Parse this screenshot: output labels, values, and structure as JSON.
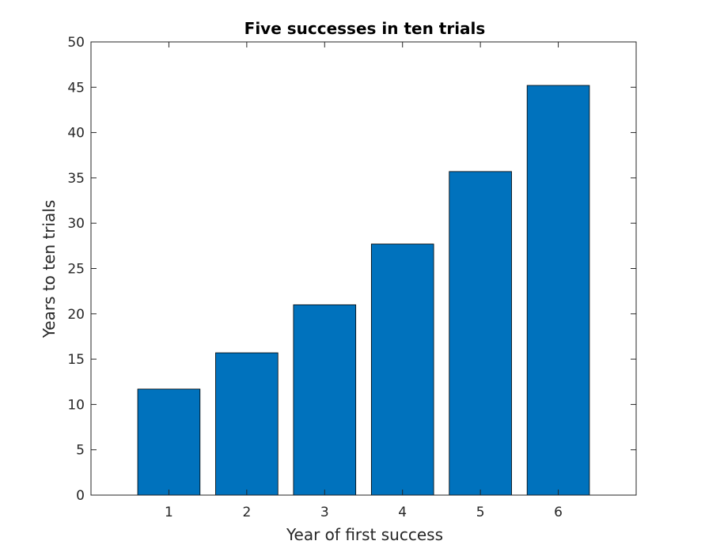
{
  "chart_data": {
    "type": "bar",
    "title": "Five successes in ten trials",
    "xlabel": "Year of first success",
    "ylabel": "Years to ten trials",
    "categories": [
      "1",
      "2",
      "3",
      "4",
      "5",
      "6"
    ],
    "values": [
      11.7,
      15.7,
      21.0,
      27.7,
      35.7,
      45.2
    ],
    "xlim": [
      0,
      7
    ],
    "ylim": [
      0,
      50
    ],
    "yticks": [
      0,
      5,
      10,
      15,
      20,
      25,
      30,
      35,
      40,
      45,
      50
    ],
    "grid": false,
    "legend": "none",
    "bar_color": "#0072BD",
    "edge_color": "#000000"
  }
}
